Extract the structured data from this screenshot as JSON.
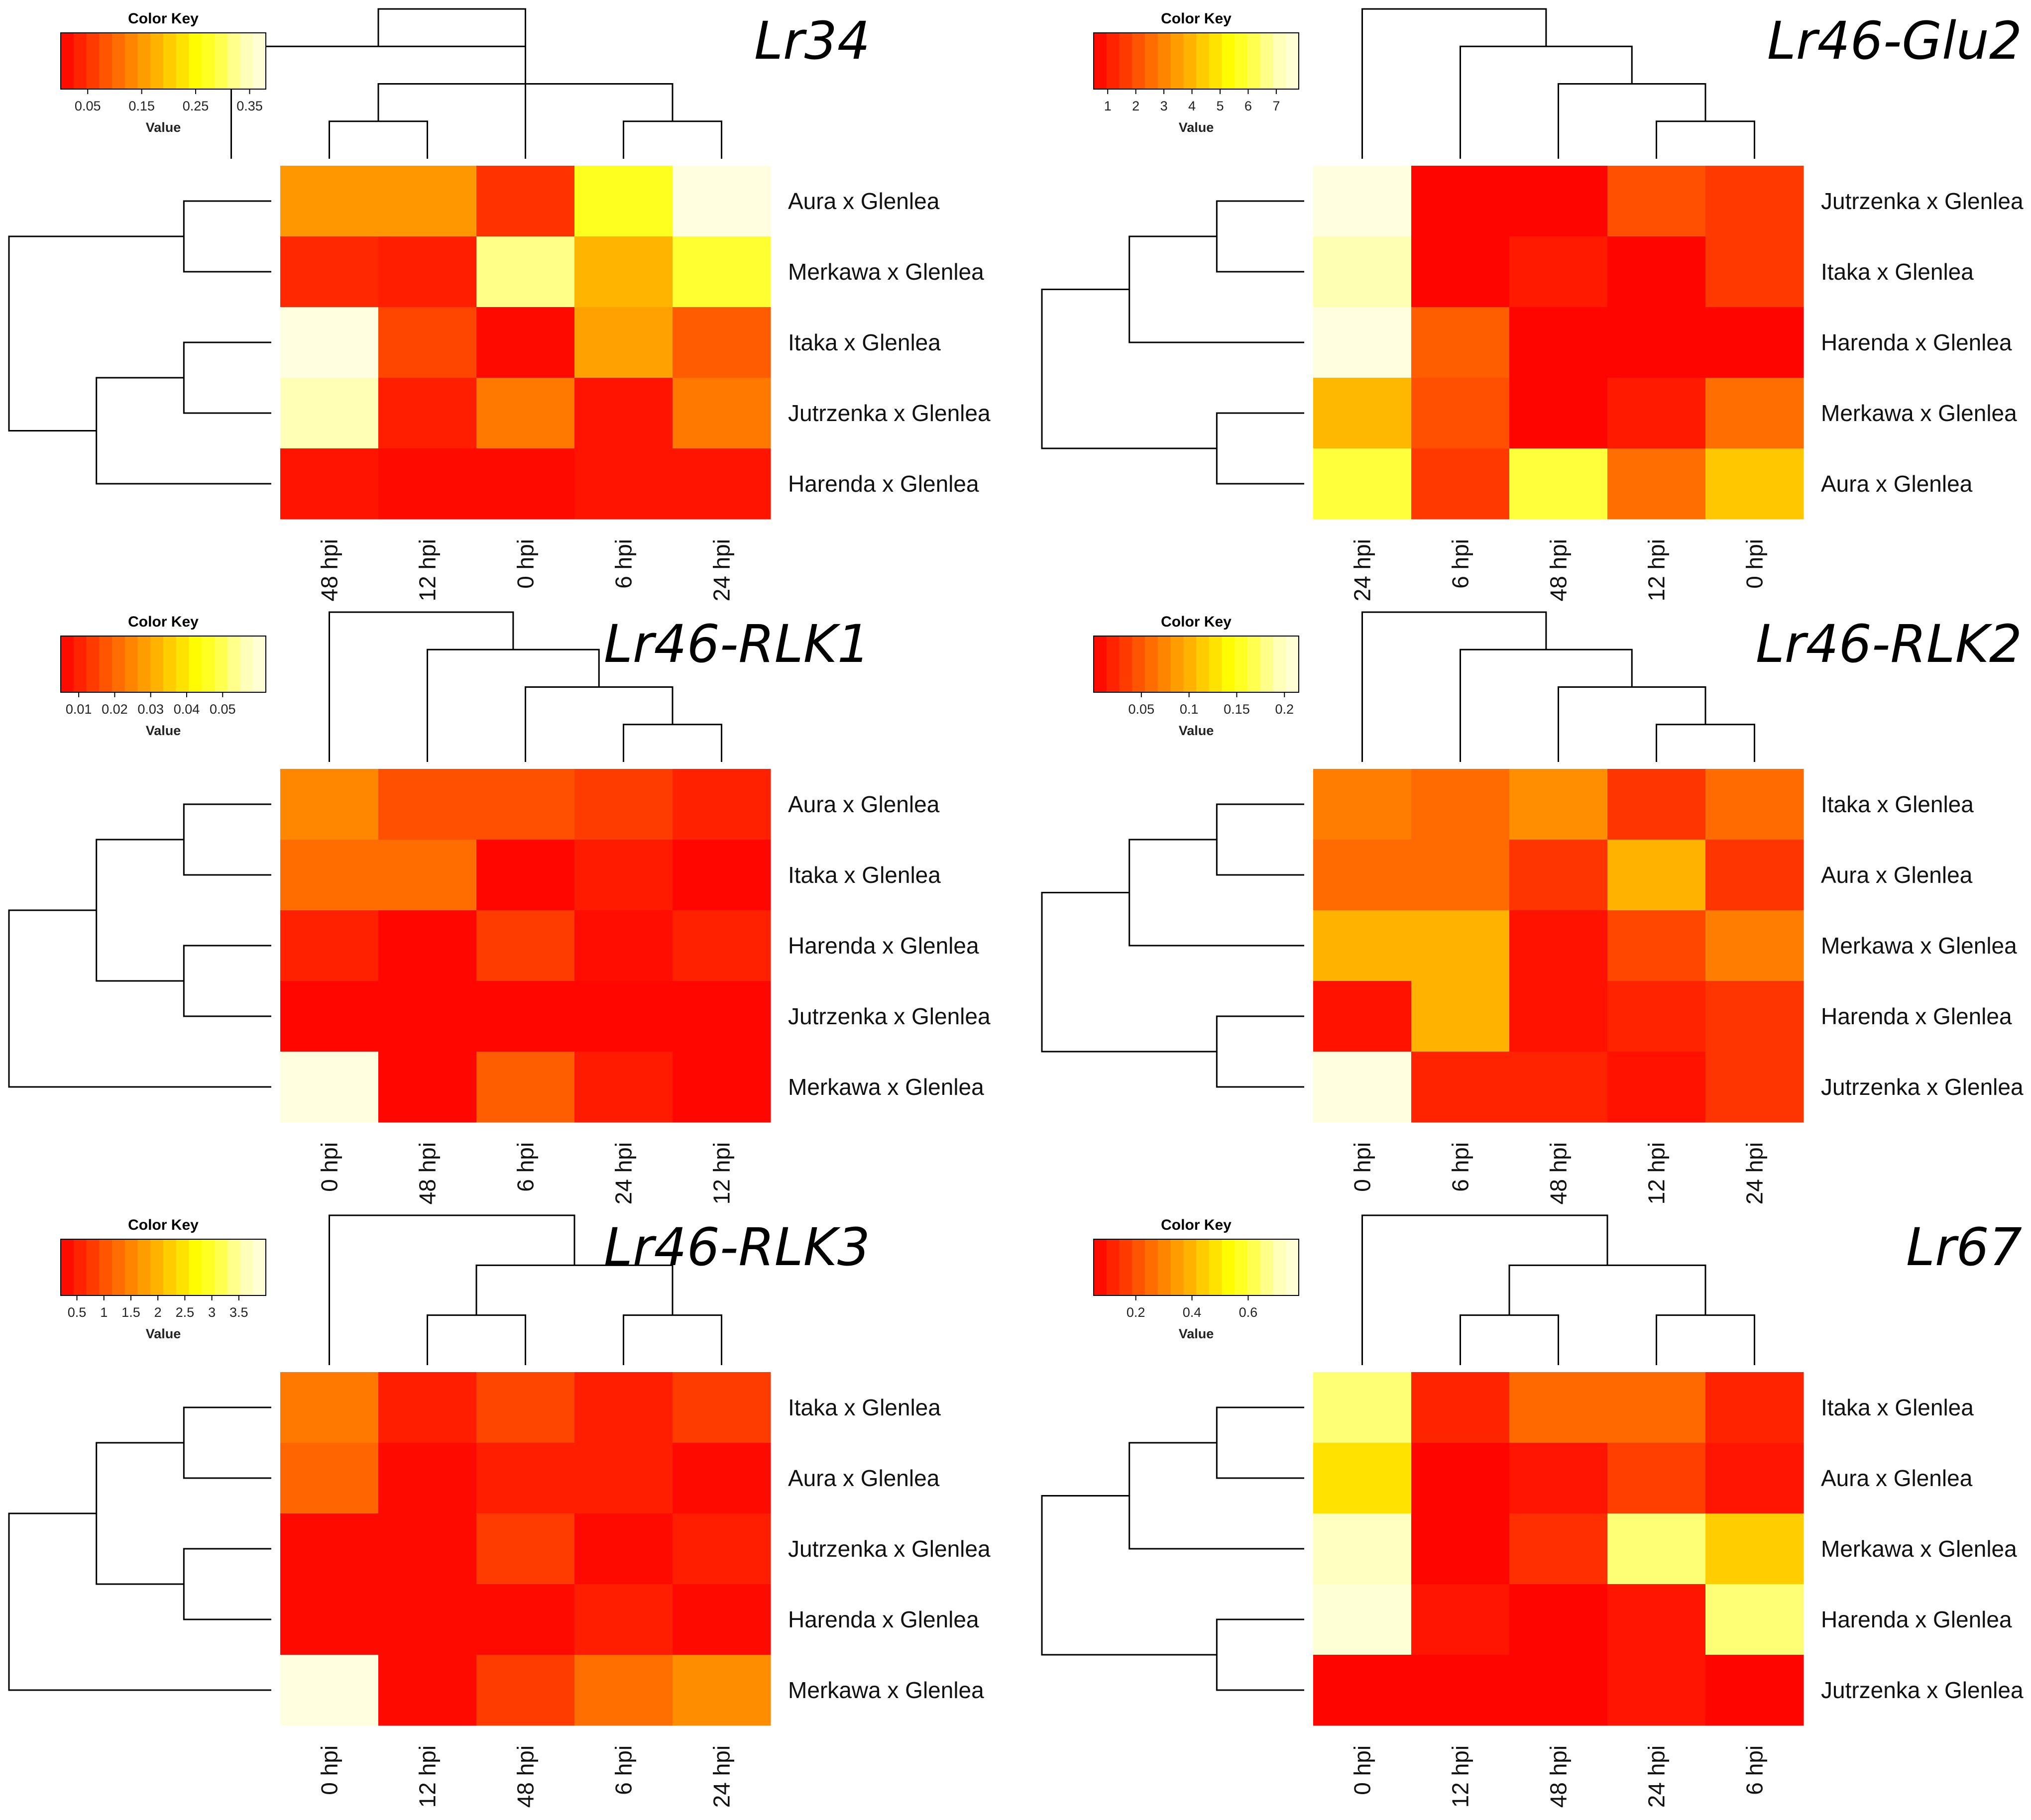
{
  "chart_data": [
    {
      "type": "heatmap",
      "title": "Lr34",
      "color_key": {
        "title": "Color Key",
        "label": "Value",
        "range": [
          0.0,
          0.38
        ],
        "ticks": [
          "0.05",
          "0.15",
          "0.25",
          "0.35"
        ],
        "tick_values": [
          0.05,
          0.15,
          0.25,
          0.35
        ]
      },
      "columns": [
        "48 hpi",
        "12 hpi",
        "0 hpi",
        "6 hpi",
        "24 hpi"
      ],
      "rows": [
        "Aura x Glenlea",
        "Merkawa x Glenlea",
        "Itaka x Glenlea",
        "Jutrzenka x Glenlea",
        "Harenda x Glenlea"
      ],
      "values": [
        [
          0.15,
          0.15,
          0.05,
          0.27,
          0.38
        ],
        [
          0.04,
          0.03,
          0.32,
          0.18,
          0.28
        ],
        [
          0.38,
          0.07,
          0.01,
          0.16,
          0.09
        ],
        [
          0.34,
          0.03,
          0.12,
          0.02,
          0.12
        ],
        [
          0.02,
          0.01,
          0.01,
          0.02,
          0.02
        ]
      ],
      "col_tree": [
        3,
        [
          0,
          [
            [
              1,
              2
            ],
            [
              4,
              5
            ]
          ]
        ]
      ],
      "row_tree": [
        [
          1,
          2
        ],
        [
          [
            3,
            4
          ],
          5
        ]
      ]
    },
    {
      "type": "heatmap",
      "title": "Lr46-Glu2",
      "color_key": {
        "title": "Color Key",
        "label": "Value",
        "range": [
          0.5,
          7.8
        ],
        "ticks": [
          "1",
          "2",
          "3",
          "4",
          "5",
          "6",
          "7"
        ],
        "tick_values": [
          1,
          2,
          3,
          4,
          5,
          6,
          7
        ]
      },
      "columns": [
        "24 hpi",
        "6 hpi",
        "48 hpi",
        "12 hpi",
        "0 hpi"
      ],
      "rows": [
        "Jutrzenka x Glenlea",
        "Itaka x Glenlea",
        "Harenda x Glenlea",
        "Merkawa x Glenlea",
        "Aura x Glenlea"
      ],
      "values": [
        [
          7.8,
          0.6,
          0.6,
          2.0,
          1.6
        ],
        [
          7.0,
          0.6,
          1.0,
          0.6,
          1.6
        ],
        [
          7.8,
          2.3,
          0.6,
          0.6,
          0.6
        ],
        [
          4.0,
          2.0,
          0.6,
          1.0,
          2.6
        ],
        [
          6.0,
          1.6,
          6.0,
          2.6,
          4.3
        ]
      ],
      "col_tree": [
        1,
        [
          2,
          [
            3,
            [
              4,
              5
            ]
          ]
        ]
      ],
      "row_tree": [
        [
          [
            1,
            2
          ],
          3
        ],
        [
          4,
          5
        ]
      ]
    },
    {
      "type": "heatmap",
      "title": "Lr46-RLK1",
      "color_key": {
        "title": "Color Key",
        "label": "Value",
        "range": [
          0.005,
          0.062
        ],
        "ticks": [
          "0.01",
          "0.02",
          "0.03",
          "0.04",
          "0.05"
        ],
        "tick_values": [
          0.01,
          0.02,
          0.03,
          0.04,
          0.05
        ]
      },
      "columns": [
        "0 hpi",
        "48 hpi",
        "6 hpi",
        "24 hpi",
        "12 hpi"
      ],
      "rows": [
        "Aura x Glenlea",
        "Itaka x Glenlea",
        "Harenda x Glenlea",
        "Jutrzenka x Glenlea",
        "Merkawa x Glenlea"
      ],
      "values": [
        [
          0.025,
          0.017,
          0.017,
          0.014,
          0.01
        ],
        [
          0.021,
          0.021,
          0.006,
          0.009,
          0.006
        ],
        [
          0.01,
          0.006,
          0.014,
          0.007,
          0.01
        ],
        [
          0.006,
          0.006,
          0.006,
          0.006,
          0.006
        ],
        [
          0.062,
          0.006,
          0.019,
          0.009,
          0.006
        ]
      ],
      "col_tree": [
        1,
        [
          2,
          [
            3,
            [
              4,
              5
            ]
          ]
        ]
      ],
      "row_tree": [
        [
          [
            1,
            2
          ],
          [
            3,
            4
          ]
        ],
        5
      ]
    },
    {
      "type": "heatmap",
      "title": "Lr46-RLK2",
      "color_key": {
        "title": "Color Key",
        "label": "Value",
        "range": [
          0.0,
          0.215
        ],
        "ticks": [
          "0.05",
          "0.1",
          "0.15",
          "0.2"
        ],
        "tick_values": [
          0.05,
          0.1,
          0.15,
          0.2
        ]
      },
      "columns": [
        "0 hpi",
        "6 hpi",
        "48 hpi",
        "12 hpi",
        "24 hpi"
      ],
      "rows": [
        "Itaka x Glenlea",
        "Aura x Glenlea",
        "Merkawa x Glenlea",
        "Harenda x Glenlea",
        "Jutrzenka x Glenlea"
      ],
      "values": [
        [
          0.07,
          0.06,
          0.08,
          0.03,
          0.06
        ],
        [
          0.06,
          0.06,
          0.03,
          0.1,
          0.03
        ],
        [
          0.1,
          0.1,
          0.01,
          0.04,
          0.07
        ],
        [
          0.01,
          0.1,
          0.01,
          0.02,
          0.03
        ],
        [
          0.215,
          0.02,
          0.02,
          0.01,
          0.03
        ]
      ],
      "col_tree": [
        1,
        [
          2,
          [
            3,
            [
              4,
              5
            ]
          ]
        ]
      ],
      "row_tree": [
        [
          [
            1,
            2
          ],
          3
        ],
        [
          4,
          5
        ]
      ]
    },
    {
      "type": "heatmap",
      "title": "Lr46-RLK3",
      "color_key": {
        "title": "Color Key",
        "label": "Value",
        "range": [
          0.2,
          4.0
        ],
        "ticks": [
          "0.5",
          "1",
          "1.5",
          "2",
          "2.5",
          "3",
          "3.5"
        ],
        "tick_values": [
          0.5,
          1,
          1.5,
          2,
          2.5,
          3,
          3.5
        ]
      },
      "columns": [
        "0 hpi",
        "12 hpi",
        "48 hpi",
        "6 hpi",
        "24 hpi"
      ],
      "rows": [
        "Itaka x Glenlea",
        "Aura x Glenlea",
        "Jutrzenka x Glenlea",
        "Harenda x Glenlea",
        "Merkawa x Glenlea"
      ],
      "values": [
        [
          1.4,
          0.5,
          0.9,
          0.5,
          0.8
        ],
        [
          1.2,
          0.3,
          0.5,
          0.5,
          0.3
        ],
        [
          0.3,
          0.3,
          0.8,
          0.3,
          0.5
        ],
        [
          0.3,
          0.3,
          0.3,
          0.5,
          0.3
        ],
        [
          4.0,
          0.3,
          0.8,
          1.3,
          1.6
        ]
      ],
      "col_tree": [
        1,
        [
          [
            2,
            3
          ],
          [
            4,
            5
          ]
        ]
      ],
      "row_tree": [
        [
          [
            1,
            2
          ],
          [
            3,
            4
          ]
        ],
        5
      ]
    },
    {
      "type": "heatmap",
      "title": "Lr67",
      "color_key": {
        "title": "Color Key",
        "label": "Value",
        "range": [
          0.05,
          0.78
        ],
        "ticks": [
          "0.2",
          "0.4",
          "0.6"
        ],
        "tick_values": [
          0.2,
          0.4,
          0.6
        ]
      },
      "columns": [
        "0 hpi",
        "12 hpi",
        "48 hpi",
        "24 hpi",
        "6 hpi"
      ],
      "rows": [
        "Itaka x Glenlea",
        "Aura x Glenlea",
        "Merkawa x Glenlea",
        "Harenda x Glenlea",
        "Jutrzenka x Glenlea"
      ],
      "values": [
        [
          0.65,
          0.12,
          0.25,
          0.25,
          0.12
        ],
        [
          0.48,
          0.06,
          0.09,
          0.17,
          0.09
        ],
        [
          0.72,
          0.06,
          0.14,
          0.65,
          0.44
        ],
        [
          0.76,
          0.09,
          0.06,
          0.09,
          0.65
        ],
        [
          0.06,
          0.06,
          0.06,
          0.09,
          0.06
        ]
      ],
      "col_tree": [
        1,
        [
          [
            2,
            3
          ],
          [
            4,
            5
          ]
        ]
      ],
      "row_tree": [
        [
          [
            1,
            2
          ],
          3
        ],
        [
          4,
          5
        ]
      ]
    }
  ]
}
